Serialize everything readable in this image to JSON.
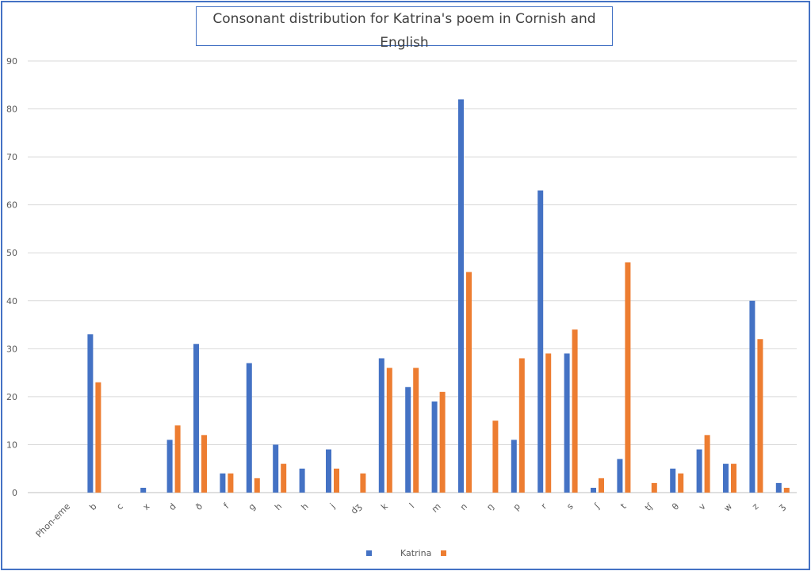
{
  "chart_data": {
    "type": "bar",
    "title": "Consonant distribution for Katrina's poem in Cornish and English",
    "xlabel": "",
    "ylabel": "",
    "ylim": [
      0,
      90
    ],
    "yticks": [
      0,
      10,
      20,
      30,
      40,
      50,
      60,
      70,
      80,
      90
    ],
    "grid": true,
    "legend_position": "bottom",
    "categories": [
      "Phon-eme",
      "b",
      "c",
      "x",
      "d",
      "ð",
      "f",
      "g",
      "h",
      "h",
      "j",
      "dʒ",
      "k",
      "l",
      "m",
      "n",
      "ŋ",
      "p",
      "r",
      "s",
      "ʃ",
      "t",
      "tʃ",
      "θ",
      "v",
      "w",
      "z",
      "ʒ"
    ],
    "series": [
      {
        "name": "",
        "color": "#4472c4",
        "values": [
          0,
          33,
          0,
          1,
          11,
          31,
          4,
          27,
          10,
          5,
          9,
          0,
          28,
          22,
          19,
          82,
          0,
          11,
          63,
          29,
          1,
          7,
          0,
          5,
          9,
          6,
          40,
          2
        ]
      },
      {
        "name": "Katrina",
        "color": "#ed7d31",
        "values": [
          0,
          23,
          0,
          0,
          14,
          12,
          4,
          3,
          6,
          0,
          5,
          4,
          26,
          26,
          21,
          46,
          15,
          28,
          29,
          34,
          3,
          48,
          2,
          4,
          12,
          6,
          32,
          1
        ]
      }
    ],
    "legend": [
      "",
      "Katrina"
    ]
  }
}
